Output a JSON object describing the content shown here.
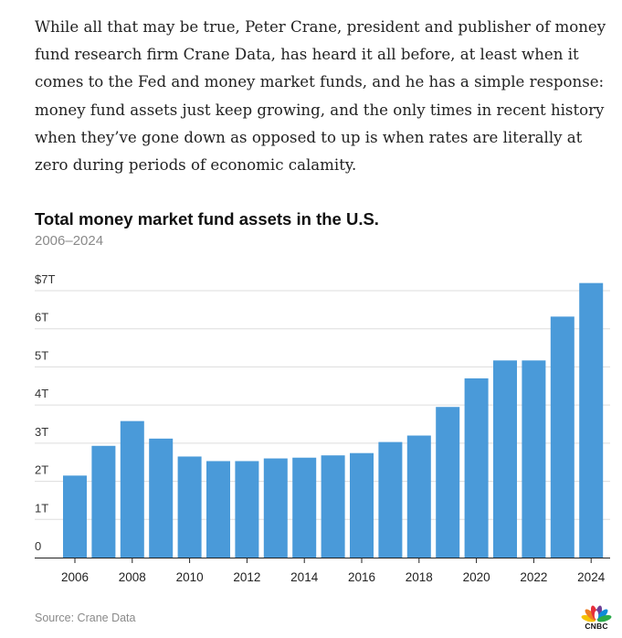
{
  "article": {
    "paragraph": "While all that may be true, Peter Crane, president and publisher of money fund research firm Crane Data, has heard it all before, at least when it comes to the Fed and money market funds, and he has a simple response: money fund assets just keep growing, and the only times in recent history when they’ve gone down as opposed to up is when rates are literally at zero during periods of economic calamity."
  },
  "chart_data": {
    "type": "bar",
    "title": "Total money market fund assets in the U.S.",
    "subtitle": "2006–2024",
    "xlabel": "",
    "ylabel": "",
    "categories": [
      "2006",
      "2007",
      "2008",
      "2009",
      "2010",
      "2011",
      "2012",
      "2013",
      "2014",
      "2015",
      "2016",
      "2017",
      "2018",
      "2019",
      "2020",
      "2021",
      "2022",
      "2023",
      "2024"
    ],
    "values": [
      2.15,
      2.93,
      3.58,
      3.12,
      2.65,
      2.53,
      2.53,
      2.6,
      2.62,
      2.68,
      2.74,
      3.03,
      3.2,
      3.95,
      4.7,
      5.17,
      5.17,
      6.32,
      7.2
    ],
    "units": "trillions of dollars",
    "ylim": [
      0,
      7
    ],
    "yticks": [
      0,
      1,
      2,
      3,
      4,
      5,
      6,
      7
    ],
    "ytick_labels": [
      "0",
      "1T",
      "2T",
      "3T",
      "4T",
      "5T",
      "6T",
      "$7T"
    ],
    "xtick_labels": [
      "2006",
      "2008",
      "2010",
      "2012",
      "2014",
      "2016",
      "2018",
      "2020",
      "2022",
      "2024"
    ],
    "bar_color": "#4a9ad9",
    "grid": true
  },
  "source": "Source: Crane Data",
  "brand": {
    "logo_text": "CNBC",
    "peacock_colors": [
      "#f6c200",
      "#ef7d22",
      "#e62e3b",
      "#6d3f96",
      "#0f8bd8",
      "#2bab4a"
    ]
  },
  "colors": {
    "text": "#222222",
    "muted": "#8a8a8a",
    "grid": "#dddddd",
    "axis": "#222222"
  }
}
